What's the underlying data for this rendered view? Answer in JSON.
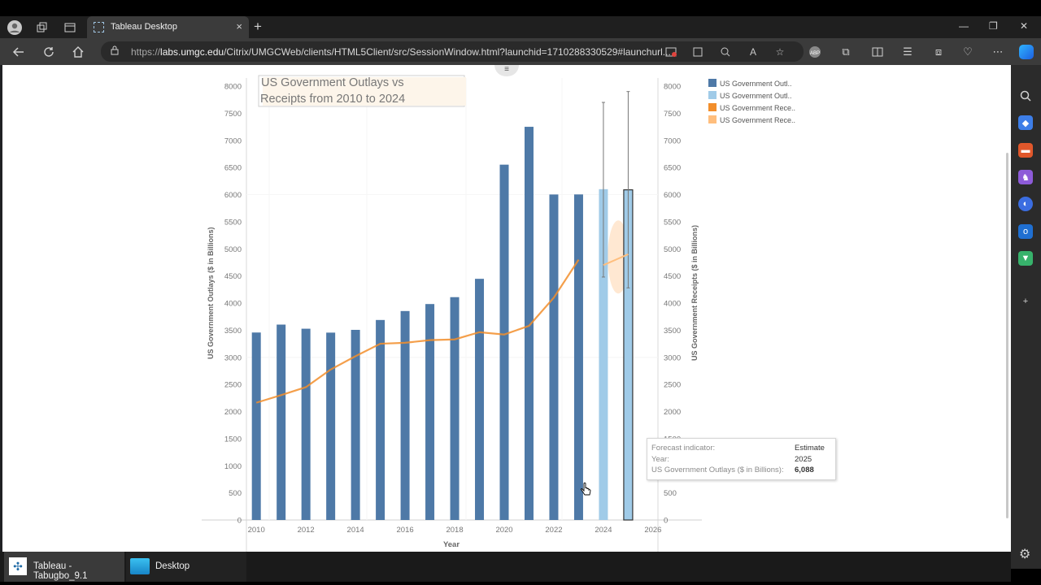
{
  "browser": {
    "tab_title": "Tableau Desktop",
    "url_prefix": "https://",
    "url_host": "labs.umgc.edu",
    "url_path": "/Citrix/UMGCWeb/clients/HTML5Client/src/SessionWindow.html?launchid=1710288330529#launchurl...",
    "new_tab_label": "+",
    "close_tab_label": "×",
    "icons": {
      "profile": "profile-avatar-icon",
      "workspaces": "workspaces-icon",
      "tab_actions": "tab-actions-icon",
      "back": "back-arrow-icon",
      "refresh": "refresh-icon",
      "home": "home-icon",
      "lock": "lock-icon"
    },
    "window": {
      "minimize": "—",
      "restore": "❐",
      "close": "✕"
    }
  },
  "viz": {
    "title_line1": "US Government Outlays vs",
    "title_line2": "Receipts from 2010 to 2024",
    "left_axis_label": "US Government Outlays ($ in Billions)",
    "right_axis_label": "US Government Receipts ($ in Billions)",
    "x_axis_label": "Year",
    "legend": [
      {
        "label": "US Government Outl..",
        "color": "#4e79a7"
      },
      {
        "label": "US Government Outl..",
        "color": "#a0cbe8"
      },
      {
        "label": "US Government Rece..",
        "color": "#f28e2b"
      },
      {
        "label": "US Government Rece..",
        "color": "#ffbe7d"
      }
    ]
  },
  "chart_data": {
    "type": "bar",
    "title": "US Government Outlays vs Receipts from 2010 to 2024",
    "xlabel": "Year",
    "ylabel": "US Government Outlays ($ in Billions)",
    "y2label": "US Government Receipts ($ in Billions)",
    "ylim": [
      0,
      8000
    ],
    "y_ticks": [
      0,
      500,
      1000,
      1500,
      2000,
      2500,
      3000,
      3500,
      4000,
      4500,
      5000,
      5500,
      6000,
      6500,
      7000,
      7500,
      8000
    ],
    "x_ticks": [
      "2010",
      "2012",
      "2014",
      "2016",
      "2018",
      "2020",
      "2022",
      "2024",
      "2026"
    ],
    "xlim": [
      2009.6,
      2026.2
    ],
    "outlays": {
      "x": [
        2010,
        2011,
        2012,
        2013,
        2014,
        2015,
        2016,
        2017,
        2018,
        2019,
        2020,
        2021,
        2022,
        2023
      ],
      "values": [
        3457,
        3603,
        3527,
        3455,
        3506,
        3688,
        3853,
        3982,
        4109,
        4447,
        6552,
        7250,
        6002,
        6003
      ],
      "color": "#4e79a7"
    },
    "outlays_forecast": {
      "x": [
        2024,
        2025
      ],
      "values": [
        6100,
        6088
      ],
      "upper": [
        7700,
        7900
      ],
      "lower": [
        4480,
        4280
      ],
      "color": "#a0cbe8"
    },
    "receipts": {
      "x": [
        2010,
        2011,
        2012,
        2013,
        2014,
        2015,
        2016,
        2017,
        2018,
        2019,
        2020,
        2021,
        2022,
        2023
      ],
      "values": [
        2163,
        2303,
        2450,
        2775,
        3021,
        3250,
        3268,
        3316,
        3330,
        3463,
        3420,
        3580,
        4100,
        4800
      ],
      "color": "#f28e2b"
    },
    "receipts_forecast": {
      "x": [
        2024,
        2025
      ],
      "values": [
        4700,
        4900
      ],
      "color": "#ffbe7d"
    },
    "grid": true,
    "legend": "right"
  },
  "tooltip": {
    "rows": [
      {
        "key": "Forecast indicator:",
        "value": "Estimate"
      },
      {
        "key": "Year:",
        "value": "2025"
      },
      {
        "key": "US Government Outlays ($ in Billions):",
        "value": "6,088"
      }
    ]
  },
  "taskbar": {
    "tableau_label": "Tableau - Tabugbo_9.1",
    "desktop_label": "Desktop"
  }
}
